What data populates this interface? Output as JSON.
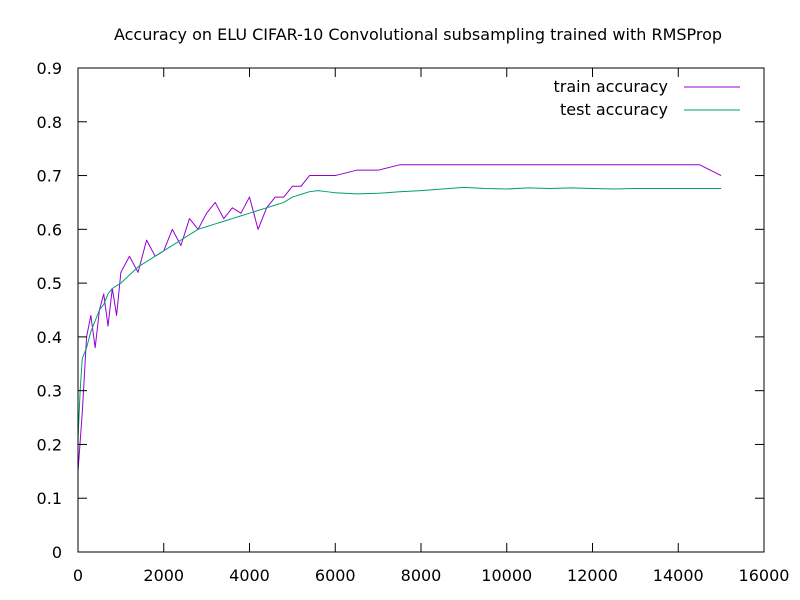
{
  "chart_data": {
    "type": "line",
    "title": "Accuracy on ELU CIFAR-10 Convolutional subsampling trained with RMSProp",
    "xlabel": "",
    "ylabel": "",
    "xlim": [
      0,
      16000
    ],
    "ylim": [
      0,
      0.9
    ],
    "x_ticks": [
      0,
      2000,
      4000,
      6000,
      8000,
      10000,
      12000,
      14000,
      16000
    ],
    "y_ticks": [
      0,
      0.1,
      0.2,
      0.3,
      0.4,
      0.5,
      0.6,
      0.7,
      0.8,
      0.9
    ],
    "x_tick_labels": [
      "0",
      "2000",
      "4000",
      "6000",
      "8000",
      "10000",
      "12000",
      "14000",
      "16000"
    ],
    "y_tick_labels": [
      "0",
      "0.1",
      "0.2",
      "0.3",
      "0.4",
      "0.5",
      "0.6",
      "0.7",
      "0.8",
      "0.9"
    ],
    "grid": false,
    "legend_position": "top-right",
    "series": [
      {
        "name": "train accuracy",
        "color": "#9400d3",
        "points": [
          [
            0,
            0.15
          ],
          [
            100,
            0.26
          ],
          [
            200,
            0.4
          ],
          [
            300,
            0.44
          ],
          [
            400,
            0.38
          ],
          [
            500,
            0.45
          ],
          [
            600,
            0.48
          ],
          [
            700,
            0.42
          ],
          [
            800,
            0.49
          ],
          [
            900,
            0.44
          ],
          [
            1000,
            0.52
          ],
          [
            1200,
            0.55
          ],
          [
            1400,
            0.52
          ],
          [
            1600,
            0.58
          ],
          [
            1800,
            0.55
          ],
          [
            2000,
            0.56
          ],
          [
            2200,
            0.6
          ],
          [
            2400,
            0.57
          ],
          [
            2600,
            0.62
          ],
          [
            2800,
            0.6
          ],
          [
            3000,
            0.63
          ],
          [
            3200,
            0.65
          ],
          [
            3400,
            0.62
          ],
          [
            3600,
            0.64
          ],
          [
            3800,
            0.63
          ],
          [
            4000,
            0.66
          ],
          [
            4200,
            0.6
          ],
          [
            4400,
            0.64
          ],
          [
            4600,
            0.66
          ],
          [
            4800,
            0.66
          ],
          [
            5000,
            0.68
          ],
          [
            5200,
            0.68
          ],
          [
            5400,
            0.7
          ],
          [
            5600,
            0.7
          ],
          [
            5800,
            0.7
          ],
          [
            6000,
            0.7
          ],
          [
            6500,
            0.71
          ],
          [
            7000,
            0.71
          ],
          [
            7500,
            0.72
          ],
          [
            8000,
            0.72
          ],
          [
            8500,
            0.72
          ],
          [
            9000,
            0.72
          ],
          [
            9500,
            0.72
          ],
          [
            10000,
            0.72
          ],
          [
            10500,
            0.72
          ],
          [
            11000,
            0.72
          ],
          [
            11500,
            0.72
          ],
          [
            12000,
            0.72
          ],
          [
            12500,
            0.72
          ],
          [
            13000,
            0.72
          ],
          [
            13500,
            0.72
          ],
          [
            14000,
            0.72
          ],
          [
            14500,
            0.72
          ],
          [
            15000,
            0.7
          ]
        ]
      },
      {
        "name": "test accuracy",
        "color": "#009e73",
        "points": [
          [
            0,
            0.21
          ],
          [
            50,
            0.3
          ],
          [
            100,
            0.36
          ],
          [
            200,
            0.38
          ],
          [
            300,
            0.41
          ],
          [
            400,
            0.43
          ],
          [
            500,
            0.45
          ],
          [
            600,
            0.46
          ],
          [
            700,
            0.48
          ],
          [
            800,
            0.49
          ],
          [
            900,
            0.495
          ],
          [
            1000,
            0.5
          ],
          [
            1200,
            0.515
          ],
          [
            1400,
            0.53
          ],
          [
            1600,
            0.54
          ],
          [
            1800,
            0.55
          ],
          [
            2000,
            0.56
          ],
          [
            2200,
            0.57
          ],
          [
            2400,
            0.58
          ],
          [
            2600,
            0.59
          ],
          [
            2800,
            0.6
          ],
          [
            3000,
            0.605
          ],
          [
            3200,
            0.61
          ],
          [
            3400,
            0.615
          ],
          [
            3600,
            0.62
          ],
          [
            3800,
            0.625
          ],
          [
            4000,
            0.63
          ],
          [
            4200,
            0.635
          ],
          [
            4400,
            0.64
          ],
          [
            4600,
            0.645
          ],
          [
            4800,
            0.65
          ],
          [
            5000,
            0.66
          ],
          [
            5200,
            0.665
          ],
          [
            5400,
            0.67
          ],
          [
            5600,
            0.672
          ],
          [
            5800,
            0.67
          ],
          [
            6000,
            0.668
          ],
          [
            6500,
            0.666
          ],
          [
            7000,
            0.667
          ],
          [
            7500,
            0.67
          ],
          [
            8000,
            0.672
          ],
          [
            8500,
            0.675
          ],
          [
            9000,
            0.678
          ],
          [
            9500,
            0.676
          ],
          [
            10000,
            0.675
          ],
          [
            10500,
            0.677
          ],
          [
            11000,
            0.676
          ],
          [
            11500,
            0.677
          ],
          [
            12000,
            0.676
          ],
          [
            12500,
            0.675
          ],
          [
            13000,
            0.676
          ],
          [
            13500,
            0.676
          ],
          [
            14000,
            0.676
          ],
          [
            14500,
            0.676
          ],
          [
            15000,
            0.676
          ]
        ]
      }
    ]
  }
}
